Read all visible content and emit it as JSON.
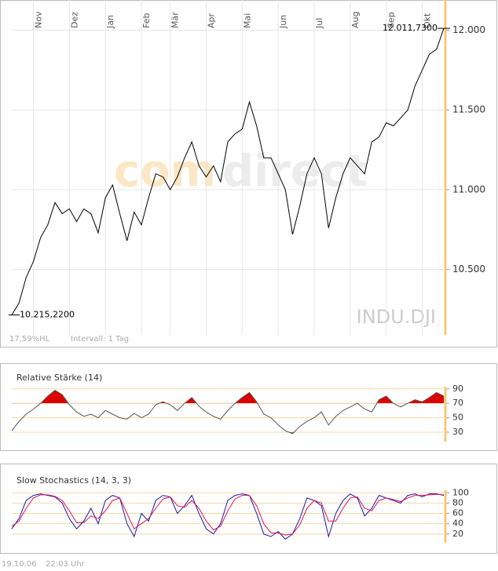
{
  "chart_data": [
    {
      "type": "line",
      "symbol": "INDU.DJI",
      "watermark": [
        "com",
        "direct"
      ],
      "info": "17,59%HL",
      "interval": "Intervall: 1 Tag",
      "color": "#000000",
      "grid": true,
      "grid_color": "#e6e6e6",
      "categories": [
        null,
        null,
        null,
        "Nov",
        null,
        null,
        null,
        null,
        "Dez",
        null,
        null,
        null,
        null,
        "Jan",
        null,
        null,
        null,
        null,
        "Feb",
        null,
        null,
        null,
        "Mär",
        null,
        null,
        null,
        null,
        "Apr",
        null,
        null,
        null,
        null,
        "Mai",
        null,
        null,
        null,
        null,
        "Jun",
        null,
        null,
        null,
        null,
        "Jul",
        null,
        null,
        null,
        null,
        "Aug",
        null,
        null,
        null,
        null,
        "Sep",
        null,
        null,
        null,
        null,
        "Okt",
        null,
        null,
        null
      ],
      "values": [
        10215.22,
        10290,
        10450,
        10550,
        10700,
        10780,
        10920,
        10850,
        10880,
        10800,
        10880,
        10850,
        10730,
        10950,
        11030,
        10850,
        10680,
        10860,
        10780,
        10950,
        11100,
        11080,
        11000,
        11080,
        11200,
        11300,
        11150,
        11080,
        11150,
        11050,
        11300,
        11350,
        11380,
        11550,
        11400,
        11200,
        11200,
        11100,
        11000,
        10720,
        10900,
        11100,
        11200,
        11100,
        10760,
        10950,
        11100,
        11200,
        11150,
        11100,
        11300,
        11330,
        11420,
        11400,
        11450,
        11500,
        11650,
        11750,
        11850,
        11880,
        12011.73
      ],
      "value_labels": [
        "10.215,2200",
        null,
        null,
        null,
        null,
        null,
        null,
        null,
        null,
        null,
        null,
        null,
        null,
        null,
        null,
        null,
        null,
        null,
        null,
        null,
        null,
        null,
        null,
        null,
        null,
        null,
        null,
        null,
        null,
        null,
        null,
        null,
        null,
        null,
        null,
        null,
        null,
        null,
        null,
        null,
        null,
        null,
        null,
        null,
        null,
        null,
        null,
        null,
        null,
        null,
        null,
        null,
        null,
        null,
        null,
        null,
        null,
        null,
        null,
        null,
        "12.011,7300"
      ],
      "ylim": [
        10090,
        12150
      ],
      "yticks": [
        {
          "value": 12000,
          "label": "12.000"
        },
        {
          "value": 11500,
          "label": "11.500"
        },
        {
          "value": 11000,
          "label": "11.000"
        },
        {
          "value": 10500,
          "label": "10.500"
        }
      ]
    },
    {
      "type": "line",
      "title": "Relative Stärke (14)",
      "color": "#555555",
      "grid": true,
      "grid_color": "#f5d9a8",
      "overbought_color": "#dd0000",
      "oversold_color": "#22aa22",
      "values": [
        32,
        45,
        55,
        62,
        70,
        80,
        88,
        82,
        68,
        58,
        52,
        55,
        50,
        60,
        55,
        50,
        48,
        56,
        50,
        55,
        68,
        72,
        68,
        60,
        70,
        78,
        66,
        58,
        52,
        48,
        60,
        70,
        78,
        85,
        72,
        55,
        50,
        40,
        32,
        28,
        38,
        45,
        50,
        58,
        40,
        52,
        60,
        65,
        70,
        62,
        58,
        75,
        80,
        70,
        65,
        70,
        75,
        72,
        78,
        85,
        80
      ],
      "ylim": [
        17,
        93
      ],
      "yticks": [
        90,
        70,
        50,
        30
      ]
    },
    {
      "type": "line",
      "title": "Slow Stochastics (14, 3, 3)",
      "grid": true,
      "grid_color": "#f5d9a8",
      "series": [
        {
          "color": "#1a1aa6",
          "values": [
            30,
            50,
            85,
            95,
            98,
            95,
            92,
            80,
            50,
            30,
            45,
            70,
            40,
            85,
            95,
            90,
            40,
            15,
            60,
            45,
            85,
            95,
            92,
            60,
            75,
            95,
            60,
            30,
            20,
            40,
            85,
            95,
            98,
            95,
            60,
            20,
            15,
            25,
            10,
            20,
            50,
            90,
            85,
            75,
            15,
            60,
            85,
            98,
            90,
            55,
            70,
            95,
            90,
            85,
            80,
            95,
            98,
            92,
            98,
            98,
            95
          ]
        },
        {
          "color": "#e0105a",
          "values": [
            35,
            45,
            70,
            90,
            96,
            96,
            93,
            85,
            65,
            42,
            42,
            55,
            50,
            65,
            85,
            90,
            60,
            30,
            40,
            50,
            70,
            88,
            92,
            75,
            72,
            85,
            70,
            45,
            28,
            35,
            65,
            88,
            95,
            95,
            75,
            40,
            22,
            22,
            18,
            20,
            38,
            70,
            85,
            80,
            45,
            45,
            70,
            90,
            92,
            70,
            65,
            85,
            90,
            87,
            83,
            90,
            95,
            95,
            96,
            97,
            96
          ]
        }
      ],
      "ylim": [
        3,
        105
      ],
      "yticks": [
        100,
        80,
        60,
        40,
        20
      ]
    }
  ],
  "footer": {
    "date": "19.10.06",
    "time": "22:03 Uhr"
  }
}
